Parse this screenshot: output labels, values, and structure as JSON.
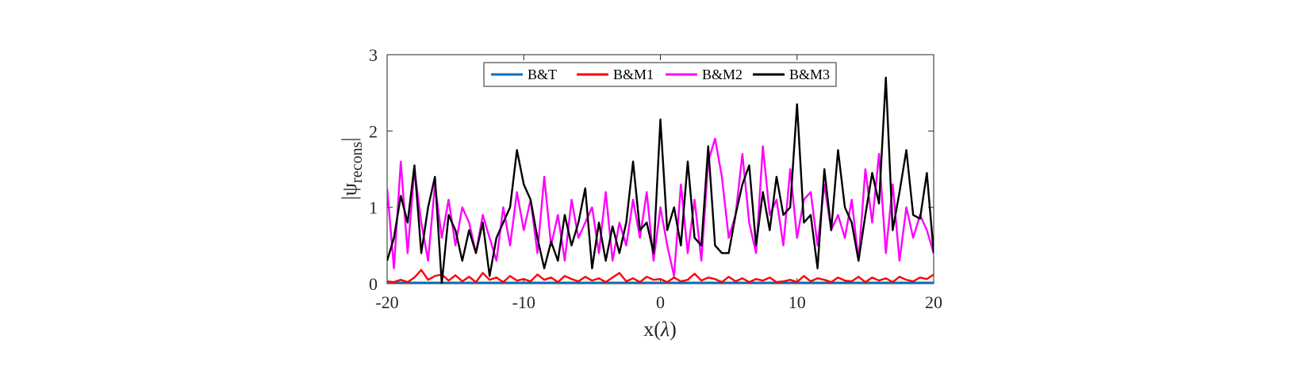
{
  "chart_data": {
    "type": "line",
    "xlabel": "x(λ)",
    "ylabel": "|ψrecons|",
    "ylabel_main": "|ψ",
    "ylabel_sub": "recons",
    "ylabel_close": "|",
    "xlim": [
      -20,
      20
    ],
    "ylim": [
      0,
      3
    ],
    "xticks": [
      -20,
      -10,
      0,
      10,
      20
    ],
    "yticks": [
      0,
      1,
      2,
      3
    ],
    "grid": false,
    "legend_position": "top-center",
    "legend_orientation": "horizontal",
    "series": [
      {
        "name": "B&T",
        "color": "#0072BD",
        "x": [
          -20,
          -15,
          -10,
          -5,
          0,
          5,
          10,
          15,
          20
        ],
        "y": [
          0.01,
          0.01,
          0.01,
          0.01,
          0.01,
          0.01,
          0.01,
          0.01,
          0.01
        ]
      },
      {
        "name": "B&M1",
        "color": "#FF0000",
        "x": [
          -20,
          -19.5,
          -19,
          -18.5,
          -18,
          -17.5,
          -17,
          -16.5,
          -16,
          -15.5,
          -15,
          -14.5,
          -14,
          -13.5,
          -13,
          -12.5,
          -12,
          -11.5,
          -11,
          -10.5,
          -10,
          -9.5,
          -9,
          -8.5,
          -8,
          -7.5,
          -7,
          -6.5,
          -6,
          -5.5,
          -5,
          -4.5,
          -4,
          -3.5,
          -3,
          -2.5,
          -2,
          -1.5,
          -1,
          -0.5,
          0,
          0.5,
          1,
          1.5,
          2,
          2.5,
          3,
          3.5,
          4,
          4.5,
          5,
          5.5,
          6,
          6.5,
          7,
          7.5,
          8,
          8.5,
          9,
          9.5,
          10,
          10.5,
          11,
          11.5,
          12,
          12.5,
          13,
          13.5,
          14,
          14.5,
          15,
          15.5,
          16,
          16.5,
          17,
          17.5,
          18,
          18.5,
          19,
          19.5,
          20
        ],
        "y": [
          0.03,
          0.02,
          0.05,
          0.02,
          0.08,
          0.18,
          0.05,
          0.1,
          0.12,
          0.04,
          0.11,
          0.03,
          0.09,
          0.02,
          0.14,
          0.05,
          0.08,
          0.02,
          0.1,
          0.04,
          0.06,
          0.03,
          0.12,
          0.05,
          0.08,
          0.02,
          0.1,
          0.06,
          0.03,
          0.09,
          0.04,
          0.07,
          0.02,
          0.08,
          0.14,
          0.03,
          0.07,
          0.02,
          0.09,
          0.05,
          0.06,
          0.02,
          0.08,
          0.03,
          0.05,
          0.13,
          0.04,
          0.08,
          0.06,
          0.02,
          0.09,
          0.03,
          0.07,
          0.02,
          0.06,
          0.04,
          0.08,
          0.02,
          0.03,
          0.05,
          0.02,
          0.1,
          0.03,
          0.07,
          0.05,
          0.02,
          0.08,
          0.04,
          0.03,
          0.09,
          0.02,
          0.08,
          0.04,
          0.07,
          0.02,
          0.09,
          0.05,
          0.03,
          0.08,
          0.06,
          0.12
        ]
      },
      {
        "name": "B&M2",
        "color": "#FF00FF",
        "x": [
          -20,
          -19.5,
          -19,
          -18.5,
          -18,
          -17.5,
          -17,
          -16.5,
          -16,
          -15.5,
          -15,
          -14.5,
          -14,
          -13.5,
          -13,
          -12.5,
          -12,
          -11.5,
          -11,
          -10.5,
          -10,
          -9.5,
          -9,
          -8.5,
          -8,
          -7.5,
          -7,
          -6.5,
          -6,
          -5.5,
          -5,
          -4.5,
          -4,
          -3.5,
          -3,
          -2.5,
          -2,
          -1.5,
          -1,
          -0.5,
          0,
          0.5,
          1,
          1.5,
          2,
          2.5,
          3,
          3.5,
          4,
          4.5,
          5,
          5.5,
          6,
          6.5,
          7,
          7.5,
          8,
          8.5,
          9,
          9.5,
          10,
          10.5,
          11,
          11.5,
          12,
          12.5,
          13,
          13.5,
          14,
          14.5,
          15,
          15.5,
          16,
          16.5,
          17,
          17.5,
          18,
          18.5,
          19,
          19.5,
          20
        ],
        "y": [
          1.25,
          0.2,
          1.6,
          0.4,
          1.5,
          0.8,
          0.3,
          1.3,
          0.6,
          1.1,
          0.5,
          1.0,
          0.8,
          0.4,
          0.9,
          0.6,
          0.3,
          1.0,
          0.5,
          1.2,
          0.7,
          1.1,
          0.4,
          1.4,
          0.5,
          0.9,
          0.3,
          1.1,
          0.6,
          0.8,
          1.0,
          0.4,
          1.2,
          0.3,
          0.8,
          0.5,
          1.1,
          0.6,
          1.2,
          0.3,
          1.0,
          0.5,
          0.1,
          1.3,
          0.4,
          1.1,
          0.3,
          1.6,
          1.9,
          1.4,
          0.6,
          0.9,
          1.7,
          0.8,
          0.4,
          1.8,
          0.9,
          1.1,
          0.5,
          1.5,
          0.6,
          1.1,
          1.2,
          0.5,
          1.3,
          0.7,
          0.9,
          0.6,
          1.1,
          0.3,
          1.5,
          0.8,
          1.7,
          0.4,
          1.3,
          0.3,
          1.0,
          0.6,
          0.9,
          0.7,
          0.4
        ]
      },
      {
        "name": "B&M3",
        "color": "#000000",
        "x": [
          -20,
          -19.5,
          -19,
          -18.5,
          -18,
          -17.5,
          -17,
          -16.5,
          -16,
          -15.5,
          -15,
          -14.5,
          -14,
          -13.5,
          -13,
          -12.5,
          -12,
          -11.5,
          -11,
          -10.5,
          -10,
          -9.5,
          -9,
          -8.5,
          -8,
          -7.5,
          -7,
          -6.5,
          -6,
          -5.5,
          -5,
          -4.5,
          -4,
          -3.5,
          -3,
          -2.5,
          -2,
          -1.5,
          -1,
          -0.5,
          0,
          0.5,
          1,
          1.5,
          2,
          2.5,
          3,
          3.5,
          4,
          4.5,
          5,
          5.5,
          6,
          6.5,
          7,
          7.5,
          8,
          8.5,
          9,
          9.5,
          10,
          10.5,
          11,
          11.5,
          12,
          12.5,
          13,
          13.5,
          14,
          14.5,
          15,
          15.5,
          16,
          16.5,
          17,
          17.5,
          18,
          18.5,
          19,
          19.5,
          20
        ],
        "y": [
          0.3,
          0.6,
          1.15,
          0.8,
          1.55,
          0.4,
          1.0,
          1.4,
          0.0,
          0.9,
          0.7,
          0.3,
          0.7,
          0.4,
          0.8,
          0.1,
          0.6,
          0.8,
          1.0,
          1.75,
          1.3,
          1.1,
          0.6,
          0.2,
          0.55,
          0.3,
          0.9,
          0.5,
          0.8,
          1.25,
          0.2,
          0.8,
          0.3,
          0.75,
          0.4,
          0.8,
          1.6,
          0.7,
          0.8,
          0.4,
          2.15,
          0.7,
          1.0,
          0.5,
          1.6,
          0.6,
          0.5,
          1.8,
          0.5,
          0.4,
          0.4,
          0.9,
          1.3,
          1.55,
          0.5,
          1.2,
          0.7,
          1.4,
          0.9,
          1.0,
          2.35,
          0.8,
          0.9,
          0.2,
          1.5,
          0.7,
          1.75,
          1.0,
          0.8,
          0.3,
          0.9,
          1.45,
          1.05,
          2.7,
          0.7,
          1.2,
          1.75,
          0.9,
          0.85,
          1.45,
          0.4
        ]
      }
    ]
  }
}
